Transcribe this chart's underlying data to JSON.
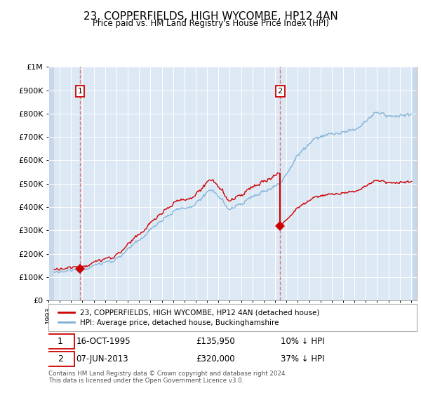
{
  "title": "23, COPPERFIELDS, HIGH WYCOMBE, HP12 4AN",
  "subtitle": "Price paid vs. HM Land Registry's House Price Index (HPI)",
  "purchase1_date": "16-OCT-1995",
  "purchase1_price": 135950,
  "purchase1_year": 1995.79,
  "purchase2_date": "07-JUN-2013",
  "purchase2_price": 320000,
  "purchase2_year": 2013.44,
  "legend_red": "23, COPPERFIELDS, HIGH WYCOMBE, HP12 4AN (detached house)",
  "legend_blue": "HPI: Average price, detached house, Buckinghamshire",
  "footer": "Contains HM Land Registry data © Crown copyright and database right 2024.\nThis data is licensed under the Open Government Licence v3.0.",
  "ylim": [
    0,
    1000000
  ],
  "xlim_start": 1993.0,
  "xlim_end": 2025.5,
  "data_start": 1993.5,
  "data_end": 2025.1,
  "bg_color": "#dce9f5",
  "hatch_color": "#c8d8eb",
  "red_color": "#cc0000",
  "blue_color": "#7bafd4",
  "grid_color": "#ffffff",
  "vline_color": "#e06060"
}
